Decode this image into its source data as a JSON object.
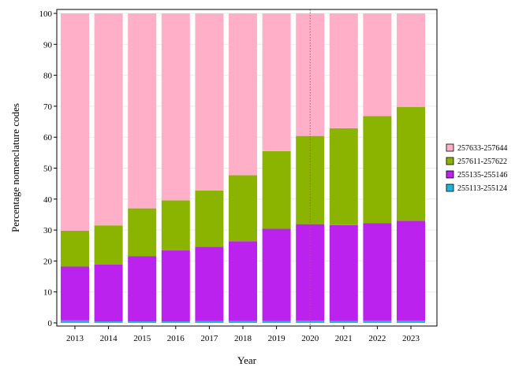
{
  "chart_data": {
    "type": "bar",
    "stacked": true,
    "categories": [
      "2013",
      "2014",
      "2015",
      "2016",
      "2017",
      "2018",
      "2019",
      "2020",
      "2021",
      "2022",
      "2023"
    ],
    "series": [
      {
        "name": "255113-255124",
        "color": "#1fb5d9",
        "values": [
          0.8,
          0.5,
          0.5,
          0.5,
          0.6,
          0.6,
          0.6,
          0.7,
          0.6,
          0.7,
          0.7
        ]
      },
      {
        "name": "255135-255146",
        "color": "#bb22ee",
        "values": [
          17.4,
          18.4,
          21.0,
          22.9,
          24.0,
          25.8,
          29.8,
          31.2,
          31.0,
          31.5,
          32.3
        ]
      },
      {
        "name": "257611-257622",
        "color": "#8ab400",
        "values": [
          11.6,
          12.6,
          15.5,
          16.2,
          18.2,
          21.3,
          25.1,
          28.5,
          31.3,
          34.6,
          36.8
        ]
      },
      {
        "name": "257633-257644",
        "color": "#ffb0c8",
        "values": [
          70.2,
          68.5,
          63.0,
          60.4,
          57.2,
          52.3,
          44.5,
          39.6,
          37.1,
          33.2,
          30.2
        ]
      }
    ],
    "xlabel": "Year",
    "ylabel": "Percentage nomenclature codes",
    "ylim": [
      0,
      100
    ],
    "yticks": [
      0,
      10,
      20,
      30,
      40,
      50,
      60,
      70,
      80,
      90,
      100
    ],
    "reference_line": {
      "x": "2020",
      "style": "dotted",
      "color": "#b05a5a"
    },
    "legend_placement": "right",
    "legend_order": [
      "257633-257644",
      "257611-257622",
      "255135-255146",
      "255113-255124"
    ]
  }
}
